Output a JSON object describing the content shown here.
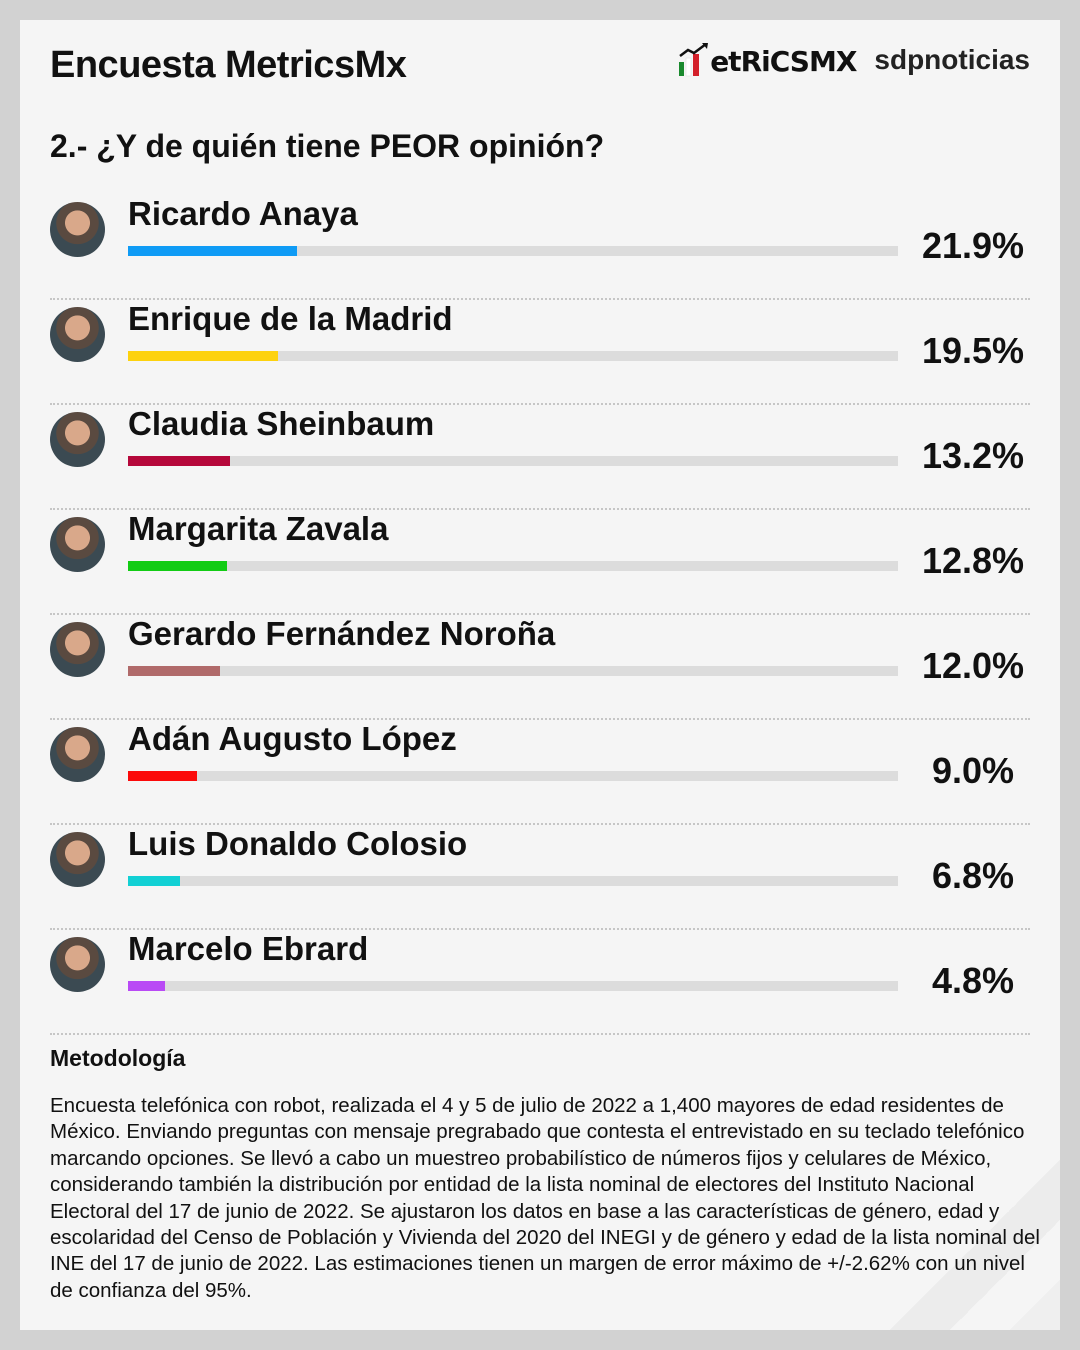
{
  "header": {
    "title": "Encuesta MetricsMx",
    "logo_metrics": "MetRiCSMX",
    "logo_sdp": "sdpnoticias"
  },
  "question": "2.- ¿Y de quién tiene PEOR opinión?",
  "chart_data": {
    "type": "bar",
    "orientation": "horizontal",
    "title": "2.- ¿Y de quién tiene PEOR opinión?",
    "xlim": [
      0,
      100
    ],
    "categories": [
      "Ricardo Anaya",
      "Enrique de la Madrid",
      "Claudia Sheinbaum",
      "Margarita Zavala",
      "Gerardo Fernández Noroña",
      "Adán Augusto López",
      "Luis Donaldo Colosio",
      "Marcelo Ebrard"
    ],
    "values": [
      21.9,
      19.5,
      13.2,
      12.8,
      12.0,
      9.0,
      6.8,
      4.8
    ],
    "labels": [
      "21.9%",
      "19.5%",
      "13.2%",
      "12.8%",
      "12.0%",
      "9.0%",
      "6.8%",
      "4.8%"
    ],
    "colors": [
      "#0f9bf5",
      "#fdd20e",
      "#b5083a",
      "#12cc14",
      "#b06a6a",
      "#fb0a0a",
      "#12d0d4",
      "#b94af5"
    ]
  },
  "methodology": {
    "heading": "Metodología",
    "text": "Encuesta telefónica con robot, realizada el 4 y 5 de julio de 2022 a 1,400 mayores de edad residentes de México. Enviando preguntas con mensaje pregrabado que contesta el entrevistado en su teclado telefónico marcando opciones. Se llevó a cabo un muestreo probabilístico de números fijos y celulares de México, considerando también la distribución por entidad de la lista nominal de electores del Instituto Nacional Electoral del 17 de junio de 2022. Se ajustaron los datos en base a las características de género, edad y escolaridad del Censo de Población y Vivienda del 2020 del INEGI y de género y edad de la lista nominal del INE del 17 de junio de 2022. Las estimaciones tienen un margen de error máximo de +/-2.62% con un nivel de confianza del 95%."
  }
}
